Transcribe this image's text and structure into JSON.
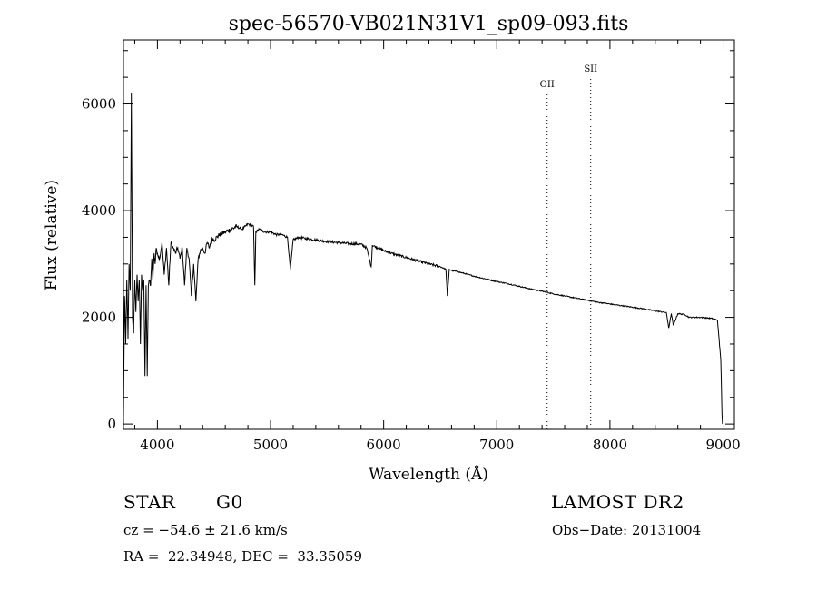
{
  "chart_data": {
    "type": "line",
    "title": "spec-56570-VB021N31V1_sp09-093.fits",
    "xlabel": "Wavelength (Å)",
    "ylabel": "Flux (relative)",
    "xlim": [
      3700,
      9100
    ],
    "ylim": [
      -100,
      7200
    ],
    "x_ticks": [
      4000,
      5000,
      6000,
      7000,
      8000,
      9000
    ],
    "x_tick_labels": [
      "4000",
      "5000",
      "6000",
      "7000",
      "8000",
      "9000"
    ],
    "y_ticks": [
      0,
      2000,
      4000,
      6000
    ],
    "y_tick_labels": [
      "0",
      "2000",
      "4000",
      "6000"
    ],
    "grid": false,
    "line_markers": [
      {
        "label": "OII",
        "x": 7445
      },
      {
        "label": "SII",
        "x": 7830
      }
    ],
    "series": [
      {
        "x": [
          3700,
          3710,
          3720,
          3730,
          3740,
          3750,
          3760,
          3770,
          3780,
          3790,
          3800,
          3810,
          3820,
          3830,
          3840,
          3850,
          3860,
          3870,
          3880,
          3890,
          3900,
          3910,
          3920,
          3930,
          3940,
          3950,
          3960,
          3970,
          3980,
          3990,
          4000,
          4020,
          4040,
          4060,
          4080,
          4100,
          4120,
          4140,
          4160,
          4180,
          4200,
          4220,
          4240,
          4260,
          4280,
          4300,
          4320,
          4340,
          4360,
          4380,
          4400,
          4420,
          4440,
          4460,
          4480,
          4500,
          4550,
          4600,
          4650,
          4700,
          4750,
          4800,
          4850,
          4861,
          4870,
          4900,
          4950,
          5000,
          5050,
          5100,
          5150,
          5175,
          5200,
          5250,
          5300,
          5400,
          5500,
          5600,
          5700,
          5800,
          5850,
          5890,
          5900,
          5950,
          6000,
          6100,
          6200,
          6300,
          6400,
          6500,
          6550,
          6563,
          6580,
          6600,
          6700,
          6800,
          6900,
          7000,
          7100,
          7200,
          7300,
          7400,
          7500,
          7600,
          7700,
          7800,
          7900,
          8000,
          8100,
          8200,
          8300,
          8400,
          8498,
          8520,
          8542,
          8560,
          8600,
          8662,
          8700,
          8800,
          8900,
          8950,
          8980,
          8990,
          8995
        ],
        "y": [
          100,
          2400,
          1500,
          2700,
          1600,
          3000,
          2500,
          6200,
          2000,
          1700,
          2700,
          2100,
          2800,
          2300,
          2700,
          1500,
          2800,
          2500,
          2700,
          900,
          2600,
          900,
          2600,
          2700,
          2600,
          3100,
          2700,
          3200,
          3000,
          3300,
          3200,
          3100,
          3400,
          2800,
          3300,
          2600,
          3400,
          3300,
          3200,
          3300,
          3100,
          3300,
          2600,
          3300,
          3100,
          2400,
          3000,
          2300,
          3100,
          3250,
          3300,
          3200,
          3400,
          3300,
          3500,
          3450,
          3550,
          3600,
          3650,
          3700,
          3650,
          3750,
          3700,
          2600,
          3600,
          3650,
          3600,
          3600,
          3550,
          3550,
          3500,
          2900,
          3450,
          3500,
          3480,
          3450,
          3420,
          3400,
          3380,
          3370,
          3300,
          2950,
          3350,
          3300,
          3250,
          3180,
          3120,
          3060,
          3000,
          2950,
          2900,
          2400,
          2900,
          2880,
          2830,
          2770,
          2720,
          2670,
          2630,
          2580,
          2530,
          2490,
          2440,
          2400,
          2360,
          2320,
          2280,
          2250,
          2220,
          2190,
          2160,
          2120,
          2090,
          1800,
          2070,
          1850,
          2070,
          2050,
          2000,
          2000,
          1980,
          1950,
          1200,
          200,
          0
        ]
      }
    ]
  },
  "info": {
    "object_class": "STAR",
    "subclass": "G0",
    "survey": "LAMOST DR2",
    "redshift": "cz = −54.6 ± 21.6 km/s",
    "obs_date": "Obs−Date: 20131004",
    "coords": "RA =  22.34948, DEC =  33.35059"
  }
}
